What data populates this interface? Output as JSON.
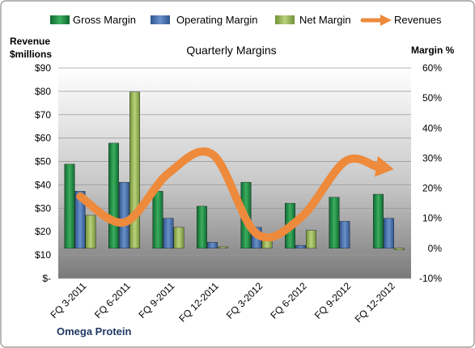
{
  "chart_data": {
    "type": "bar",
    "title": "Quarterly Margins",
    "company": "Omega Protein",
    "left_axis": {
      "label_line1": "Revenue",
      "label_line2": "$millions",
      "range": [
        0,
        90
      ],
      "ticks": [
        "$-",
        "$10",
        "$20",
        "$30",
        "$40",
        "$50",
        "$60",
        "$70",
        "$80",
        "$90"
      ]
    },
    "right_axis": {
      "label": "Margin %",
      "range": [
        -10,
        60
      ],
      "ticks": [
        "-10%",
        "0%",
        "10%",
        "20%",
        "30%",
        "40%",
        "50%",
        "60%"
      ]
    },
    "categories": [
      "FQ 3-2011",
      "FQ 6-2011",
      "FQ 9-2011",
      "FQ 12-2011",
      "FQ 3-2012",
      "FQ 6-2012",
      "FQ 9-2012",
      "FQ 12-2012"
    ],
    "series": [
      {
        "name": "Gross Margin",
        "axis": "right",
        "type": "bar",
        "color": "#2e8b4e",
        "values": [
          28,
          35,
          19,
          14,
          22,
          15,
          17,
          18
        ]
      },
      {
        "name": "Operating Margin",
        "axis": "right",
        "type": "bar",
        "color": "#4a73b0",
        "values": [
          19,
          22,
          10,
          2,
          7,
          1,
          9,
          10
        ]
      },
      {
        "name": "Net Margin",
        "axis": "right",
        "type": "bar",
        "color": "#9aba59",
        "values": [
          11,
          52,
          7,
          0.5,
          4,
          6,
          null,
          -0.5
        ]
      },
      {
        "name": "Revenues",
        "axis": "left",
        "type": "line",
        "color": "#ed8a3c",
        "values": [
          35,
          24,
          45,
          53,
          19,
          26,
          50,
          47
        ]
      }
    ],
    "grid": true,
    "legend_position": "top"
  }
}
